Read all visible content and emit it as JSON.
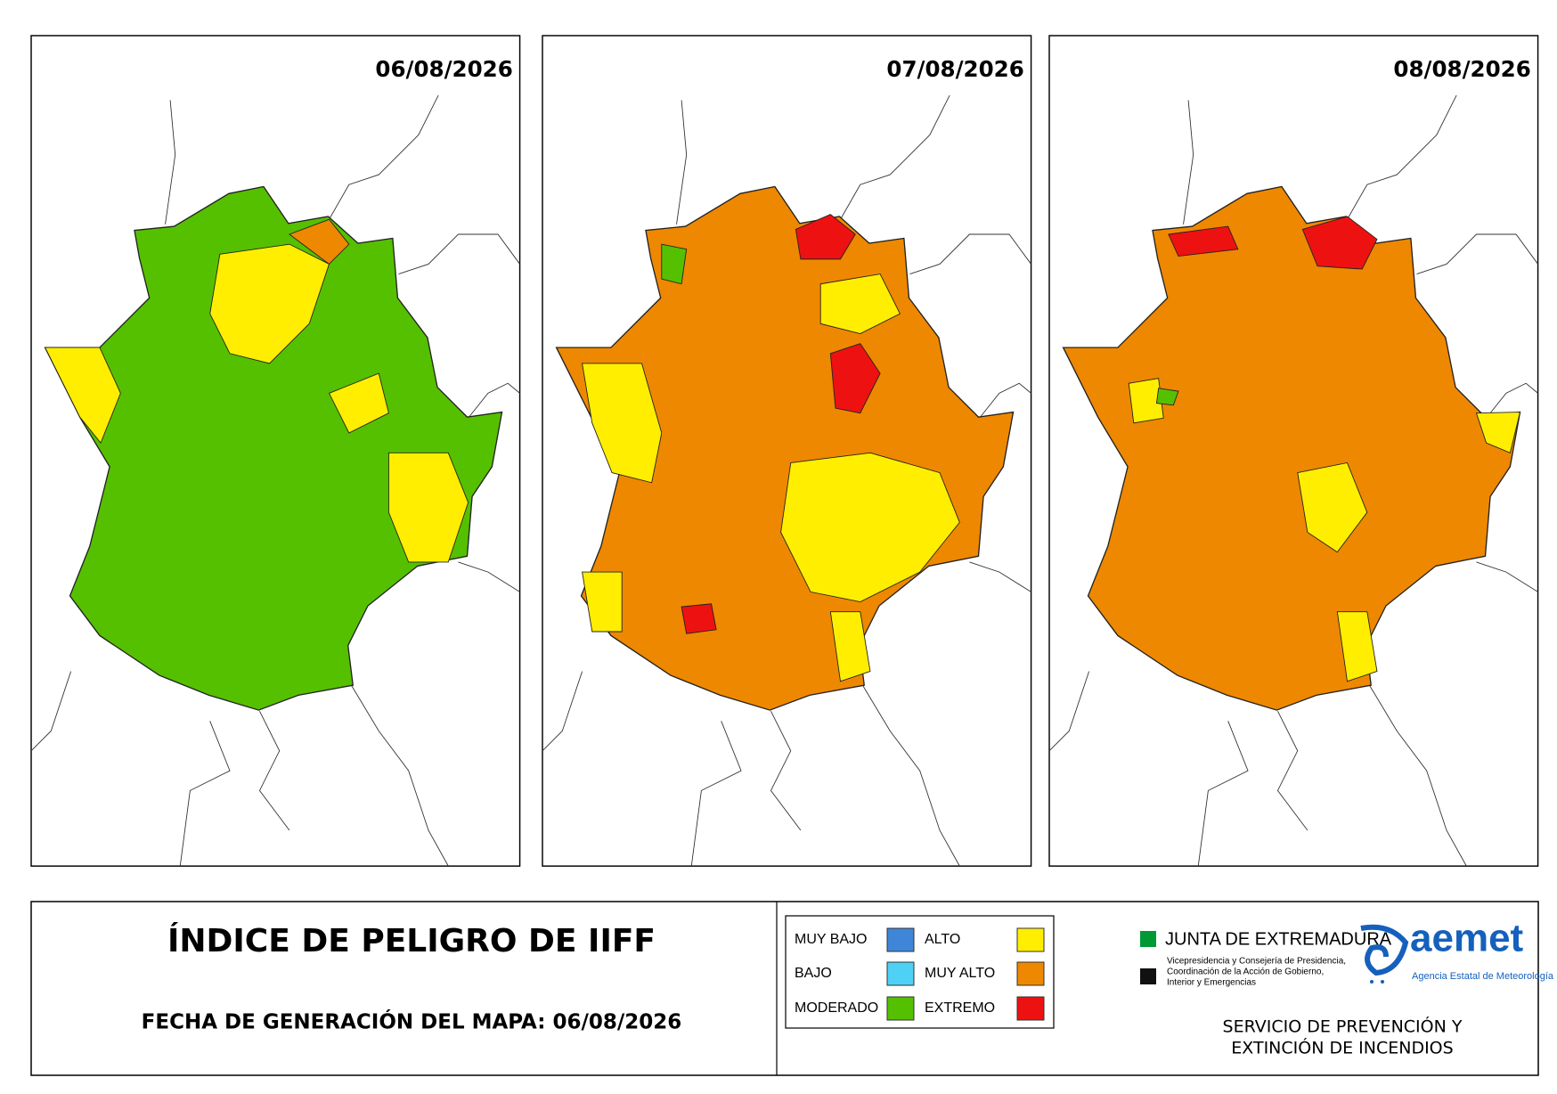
{
  "maps": [
    {
      "date": "06/08/2026"
    },
    {
      "date": "07/08/2026"
    },
    {
      "date": "08/08/2026"
    }
  ],
  "footer": {
    "title": "ÍNDICE DE PELIGRO DE IIFF",
    "generation_date": "FECHA DE GENERACIÓN DEL MAPA: 06/08/2026"
  },
  "legend": {
    "items": [
      {
        "label": "MUY BAJO",
        "color": "#3f86d8"
      },
      {
        "label": "BAJO",
        "color": "#4fd0f5"
      },
      {
        "label": "MODERADO",
        "color": "#55c000"
      },
      {
        "label": "ALTO",
        "color": "#ffee00"
      },
      {
        "label": "MUY ALTO",
        "color": "#ee8800"
      },
      {
        "label": "EXTREMO",
        "color": "#ee1111"
      }
    ]
  },
  "logos": {
    "junta": "JUNTA DE EXTREMADURA",
    "junta_lines": [
      "Vicepresidencia y Consejería de Presidencia,",
      "Coordinación de la Acción de Gobierno,",
      "Interior y Emergencias"
    ],
    "aemet": "aemet",
    "aemet_subtitle": "Agencia Estatal de Meteorología"
  },
  "service": [
    "SERVICIO DE PREVENCIÓN Y",
    "EXTINCIÓN DE INCENDIOS"
  ]
}
